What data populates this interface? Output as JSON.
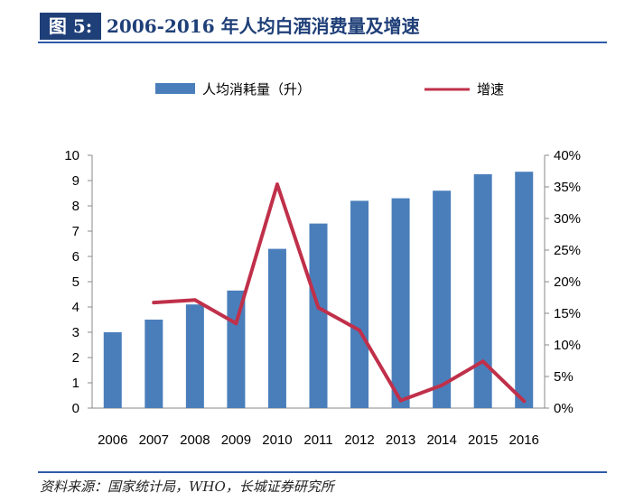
{
  "header": {
    "figure_label": "图 5:",
    "title": "2006-2016 年人均白酒消费量及增速"
  },
  "source": "资料来源：国家统计局，WHO，长城证券研究所",
  "chart_data": {
    "type": "bar",
    "title": "2006-2016 年人均白酒消费量及增速",
    "categories": [
      "2006",
      "2007",
      "2008",
      "2009",
      "2010",
      "2011",
      "2012",
      "2013",
      "2014",
      "2015",
      "2016"
    ],
    "series": [
      {
        "name": "人均消耗量（升）",
        "type": "bar",
        "axis": "left",
        "color": "#4a7ebb",
        "values": [
          3.0,
          3.5,
          4.1,
          4.65,
          6.3,
          7.3,
          8.2,
          8.3,
          8.6,
          9.25,
          9.35
        ]
      },
      {
        "name": "增速",
        "type": "line",
        "axis": "right",
        "color": "#c0304a",
        "values": [
          null,
          0.167,
          0.171,
          0.134,
          0.354,
          0.159,
          0.123,
          0.012,
          0.036,
          0.074,
          0.011
        ]
      }
    ],
    "yleft": {
      "min": 0,
      "max": 10,
      "ticks": [
        "0",
        "1",
        "2",
        "3",
        "4",
        "5",
        "6",
        "7",
        "8",
        "9",
        "10"
      ]
    },
    "yright": {
      "min": 0,
      "max": 0.4,
      "ticks": [
        "0%",
        "5%",
        "10%",
        "15%",
        "20%",
        "25%",
        "30%",
        "35%",
        "40%"
      ]
    },
    "grid": false,
    "legend_position": "top"
  }
}
